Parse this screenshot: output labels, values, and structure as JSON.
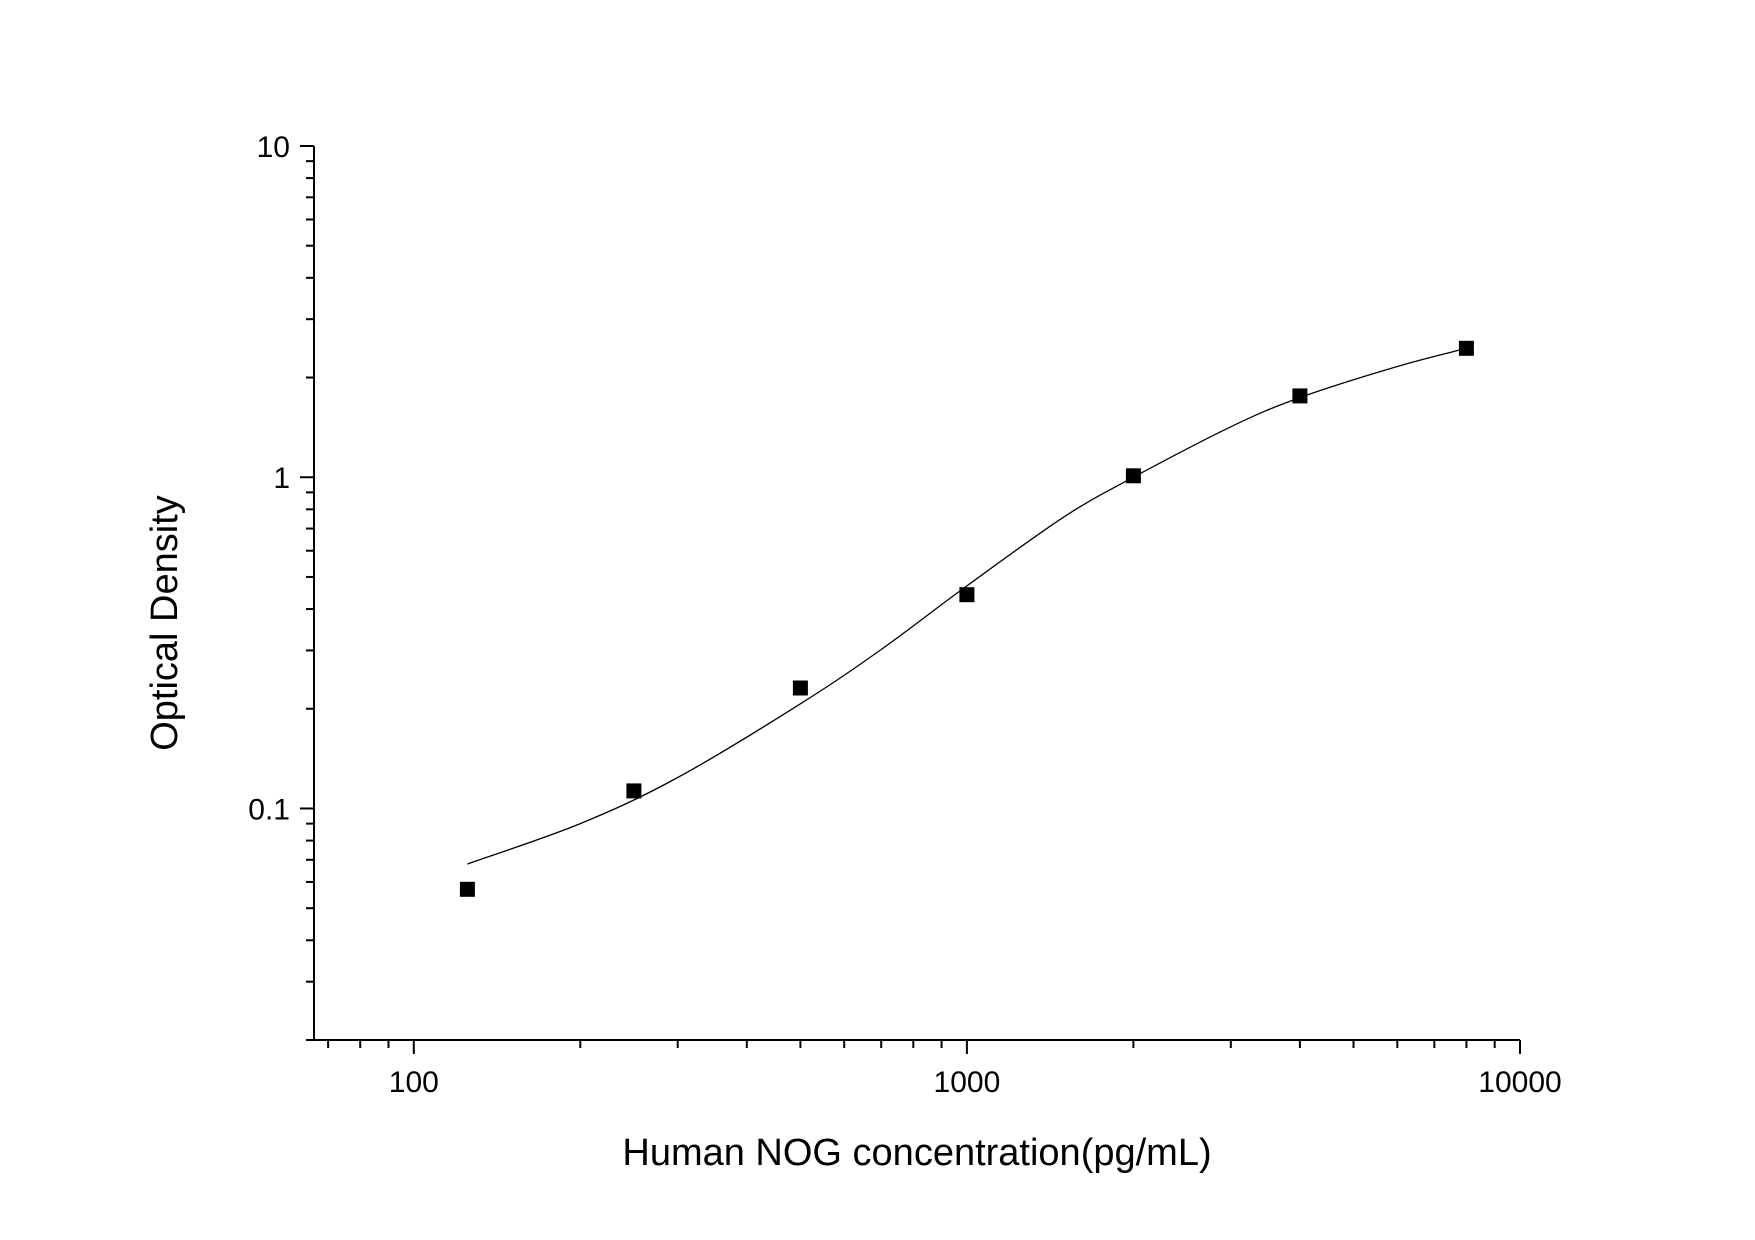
{
  "chart_data": {
    "type": "scatter",
    "xlabel": "Human NOG concentration(pg/mL)",
    "ylabel": "Optical Density",
    "x_scale": "log",
    "y_scale": "log",
    "xlim": [
      66,
      10000
    ],
    "ylim": [
      0.02,
      10
    ],
    "x_ticks": [
      {
        "value": 100,
        "label": "100"
      },
      {
        "value": 1000,
        "label": "1000"
      },
      {
        "value": 10000,
        "label": "10000"
      }
    ],
    "y_ticks": [
      {
        "value": 10,
        "label": "10"
      },
      {
        "value": 1,
        "label": "1"
      },
      {
        "value": 0.1,
        "label": "0.1"
      }
    ],
    "grid": false,
    "legend": "none",
    "colors": {
      "marker": "#000000",
      "curve": "#000000",
      "axis": "#000000"
    },
    "series": [
      {
        "marker": "square",
        "x": [
          125,
          250,
          500,
          1000,
          2000,
          4000,
          8000
        ],
        "y": [
          0.057,
          0.113,
          0.231,
          0.442,
          1.01,
          1.76,
          2.45
        ]
      }
    ],
    "fit_curve": {
      "x": [
        125,
        200,
        300,
        500,
        700,
        1000,
        1500,
        2000,
        3000,
        4000,
        6000,
        8000
      ],
      "y": [
        0.068,
        0.09,
        0.124,
        0.207,
        0.302,
        0.47,
        0.76,
        1.0,
        1.42,
        1.74,
        2.16,
        2.45
      ]
    }
  }
}
